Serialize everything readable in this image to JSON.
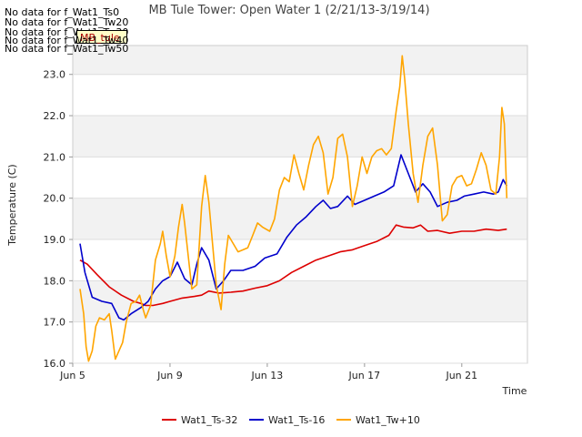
{
  "nodata_messages": [
    "No data for f_Wat1_Ts0",
    "No data for f_Wat1_Tw20",
    "No data for f_Wat1_Tw30",
    "No data for f_Wat1_Tw40",
    "No data for f_Wat1_Tw50"
  ],
  "tag_label": "MB_tule",
  "chart_data": {
    "type": "line",
    "title": "MB Tule Tower: Open Water 1 (2/21/13-3/19/14)",
    "xlabel": "Time",
    "ylabel": "Temperature (C)",
    "xlim": [
      5,
      23.7
    ],
    "ylim": [
      16.0,
      23.7
    ],
    "x_ticks": [
      5,
      9,
      13,
      17,
      21
    ],
    "x_tick_labels": [
      "Jun 5",
      "Jun 9",
      "Jun 13",
      "Jun 17",
      "Jun 21"
    ],
    "y_ticks": [
      16.0,
      17.0,
      18.0,
      19.0,
      20.0,
      21.0,
      22.0,
      23.0
    ],
    "y_tick_labels": [
      "16.0",
      "17.0",
      "18.0",
      "19.0",
      "20.0",
      "21.0",
      "22.0",
      "23.0"
    ],
    "legend_position": "bottom-center",
    "series": [
      {
        "name": "Wat1_Ts-32",
        "color": "#dd0000",
        "points": [
          [
            5.3,
            18.5
          ],
          [
            5.6,
            18.4
          ],
          [
            6.0,
            18.15
          ],
          [
            6.5,
            17.85
          ],
          [
            7.0,
            17.65
          ],
          [
            7.5,
            17.5
          ],
          [
            7.8,
            17.45
          ],
          [
            8.0,
            17.4
          ],
          [
            8.3,
            17.4
          ],
          [
            8.7,
            17.45
          ],
          [
            9.0,
            17.5
          ],
          [
            9.5,
            17.58
          ],
          [
            10.0,
            17.62
          ],
          [
            10.3,
            17.65
          ],
          [
            10.6,
            17.75
          ],
          [
            11.0,
            17.7
          ],
          [
            11.5,
            17.72
          ],
          [
            12.0,
            17.75
          ],
          [
            12.5,
            17.82
          ],
          [
            13.0,
            17.88
          ],
          [
            13.5,
            18.0
          ],
          [
            14.0,
            18.2
          ],
          [
            14.5,
            18.35
          ],
          [
            15.0,
            18.5
          ],
          [
            15.5,
            18.6
          ],
          [
            16.0,
            18.7
          ],
          [
            16.5,
            18.75
          ],
          [
            17.0,
            18.85
          ],
          [
            17.5,
            18.95
          ],
          [
            18.0,
            19.1
          ],
          [
            18.3,
            19.35
          ],
          [
            18.6,
            19.3
          ],
          [
            19.0,
            19.28
          ],
          [
            19.3,
            19.35
          ],
          [
            19.6,
            19.2
          ],
          [
            20.0,
            19.22
          ],
          [
            20.5,
            19.15
          ],
          [
            21.0,
            19.2
          ],
          [
            21.5,
            19.2
          ],
          [
            22.0,
            19.25
          ],
          [
            22.5,
            19.22
          ],
          [
            22.85,
            19.25
          ]
        ]
      },
      {
        "name": "Wat1_Ts-16",
        "color": "#0000cc",
        "points": [
          [
            5.3,
            18.9
          ],
          [
            5.5,
            18.2
          ],
          [
            5.8,
            17.6
          ],
          [
            6.2,
            17.5
          ],
          [
            6.6,
            17.45
          ],
          [
            6.9,
            17.1
          ],
          [
            7.1,
            17.05
          ],
          [
            7.4,
            17.2
          ],
          [
            7.8,
            17.35
          ],
          [
            8.1,
            17.5
          ],
          [
            8.4,
            17.8
          ],
          [
            8.7,
            18.0
          ],
          [
            9.0,
            18.1
          ],
          [
            9.3,
            18.45
          ],
          [
            9.6,
            18.05
          ],
          [
            9.9,
            17.9
          ],
          [
            10.1,
            18.4
          ],
          [
            10.3,
            18.8
          ],
          [
            10.6,
            18.5
          ],
          [
            10.9,
            17.8
          ],
          [
            11.2,
            18.0
          ],
          [
            11.5,
            18.25
          ],
          [
            12.0,
            18.25
          ],
          [
            12.5,
            18.35
          ],
          [
            12.9,
            18.55
          ],
          [
            13.4,
            18.65
          ],
          [
            13.8,
            19.05
          ],
          [
            14.2,
            19.35
          ],
          [
            14.6,
            19.55
          ],
          [
            15.0,
            19.8
          ],
          [
            15.3,
            19.95
          ],
          [
            15.6,
            19.75
          ],
          [
            15.9,
            19.8
          ],
          [
            16.3,
            20.05
          ],
          [
            16.6,
            19.85
          ],
          [
            17.0,
            19.95
          ],
          [
            17.4,
            20.05
          ],
          [
            17.8,
            20.15
          ],
          [
            18.2,
            20.3
          ],
          [
            18.5,
            21.05
          ],
          [
            18.8,
            20.6
          ],
          [
            19.1,
            20.15
          ],
          [
            19.4,
            20.35
          ],
          [
            19.7,
            20.15
          ],
          [
            20.0,
            19.8
          ],
          [
            20.4,
            19.9
          ],
          [
            20.8,
            19.95
          ],
          [
            21.1,
            20.05
          ],
          [
            21.5,
            20.1
          ],
          [
            21.9,
            20.15
          ],
          [
            22.3,
            20.1
          ],
          [
            22.5,
            20.15
          ],
          [
            22.7,
            20.45
          ],
          [
            22.85,
            20.3
          ]
        ]
      },
      {
        "name": "Wat1_Tw+10",
        "color": "#ffa500",
        "points": [
          [
            5.3,
            17.8
          ],
          [
            5.45,
            17.2
          ],
          [
            5.55,
            16.4
          ],
          [
            5.65,
            16.05
          ],
          [
            5.8,
            16.3
          ],
          [
            5.95,
            16.9
          ],
          [
            6.1,
            17.1
          ],
          [
            6.3,
            17.05
          ],
          [
            6.5,
            17.2
          ],
          [
            6.6,
            16.8
          ],
          [
            6.75,
            16.1
          ],
          [
            6.9,
            16.3
          ],
          [
            7.05,
            16.5
          ],
          [
            7.2,
            17.0
          ],
          [
            7.4,
            17.45
          ],
          [
            7.6,
            17.5
          ],
          [
            7.75,
            17.65
          ],
          [
            7.9,
            17.3
          ],
          [
            8.0,
            17.1
          ],
          [
            8.2,
            17.4
          ],
          [
            8.4,
            18.5
          ],
          [
            8.6,
            18.9
          ],
          [
            8.7,
            19.2
          ],
          [
            8.85,
            18.6
          ],
          [
            9.0,
            18.1
          ],
          [
            9.2,
            18.6
          ],
          [
            9.35,
            19.3
          ],
          [
            9.5,
            19.85
          ],
          [
            9.6,
            19.4
          ],
          [
            9.75,
            18.6
          ],
          [
            9.9,
            17.8
          ],
          [
            10.1,
            17.9
          ],
          [
            10.3,
            19.8
          ],
          [
            10.45,
            20.55
          ],
          [
            10.6,
            19.9
          ],
          [
            10.75,
            18.9
          ],
          [
            10.9,
            17.9
          ],
          [
            11.1,
            17.3
          ],
          [
            11.25,
            18.4
          ],
          [
            11.4,
            19.1
          ],
          [
            11.6,
            18.9
          ],
          [
            11.8,
            18.7
          ],
          [
            12.0,
            18.75
          ],
          [
            12.2,
            18.8
          ],
          [
            12.4,
            19.1
          ],
          [
            12.6,
            19.4
          ],
          [
            12.8,
            19.3
          ],
          [
            13.1,
            19.2
          ],
          [
            13.3,
            19.5
          ],
          [
            13.5,
            20.2
          ],
          [
            13.7,
            20.5
          ],
          [
            13.9,
            20.4
          ],
          [
            14.1,
            21.05
          ],
          [
            14.3,
            20.6
          ],
          [
            14.5,
            20.2
          ],
          [
            14.7,
            20.8
          ],
          [
            14.9,
            21.3
          ],
          [
            15.1,
            21.5
          ],
          [
            15.3,
            21.1
          ],
          [
            15.5,
            20.1
          ],
          [
            15.7,
            20.5
          ],
          [
            15.9,
            21.45
          ],
          [
            16.1,
            21.55
          ],
          [
            16.3,
            21.0
          ],
          [
            16.5,
            19.8
          ],
          [
            16.7,
            20.3
          ],
          [
            16.9,
            21.0
          ],
          [
            17.1,
            20.6
          ],
          [
            17.3,
            21.0
          ],
          [
            17.5,
            21.15
          ],
          [
            17.7,
            21.2
          ],
          [
            17.9,
            21.05
          ],
          [
            18.1,
            21.2
          ],
          [
            18.3,
            22.1
          ],
          [
            18.45,
            22.7
          ],
          [
            18.55,
            23.45
          ],
          [
            18.65,
            22.9
          ],
          [
            18.8,
            21.8
          ],
          [
            19.0,
            20.6
          ],
          [
            19.2,
            19.9
          ],
          [
            19.4,
            20.8
          ],
          [
            19.6,
            21.5
          ],
          [
            19.8,
            21.7
          ],
          [
            20.0,
            20.8
          ],
          [
            20.2,
            19.45
          ],
          [
            20.4,
            19.6
          ],
          [
            20.6,
            20.3
          ],
          [
            20.8,
            20.5
          ],
          [
            21.0,
            20.55
          ],
          [
            21.2,
            20.3
          ],
          [
            21.4,
            20.35
          ],
          [
            21.6,
            20.7
          ],
          [
            21.8,
            21.1
          ],
          [
            22.0,
            20.8
          ],
          [
            22.2,
            20.2
          ],
          [
            22.4,
            20.1
          ],
          [
            22.55,
            21.0
          ],
          [
            22.65,
            22.2
          ],
          [
            22.75,
            21.8
          ],
          [
            22.85,
            20.0
          ]
        ]
      }
    ]
  }
}
